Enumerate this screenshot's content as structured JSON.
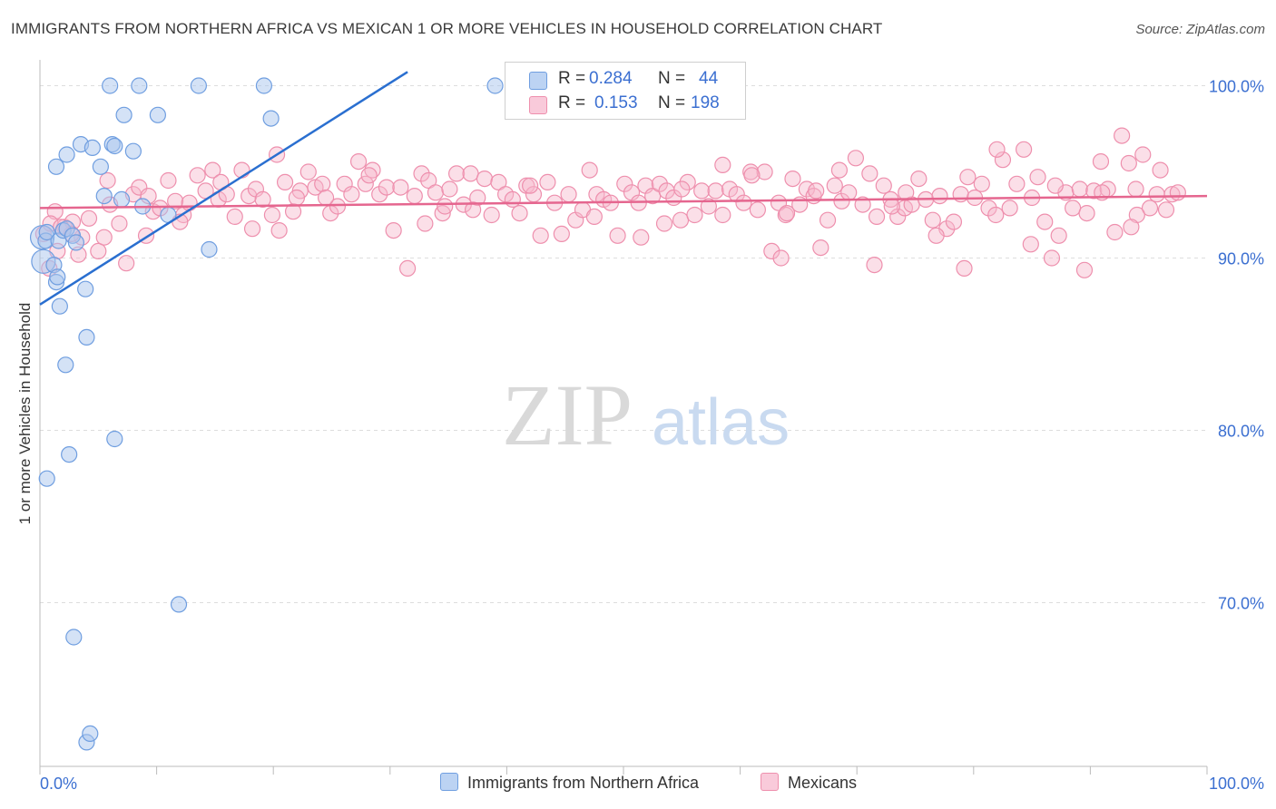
{
  "title": "IMMIGRANTS FROM NORTHERN AFRICA VS MEXICAN 1 OR MORE VEHICLES IN HOUSEHOLD CORRELATION CHART",
  "source": "Source: ZipAtlas.com",
  "watermark": {
    "zip": "ZIP",
    "atlas": "atlas"
  },
  "legend": {
    "r_label": "R =",
    "n_label": "N =",
    "rows": [
      {
        "r": "0.284",
        "n": "44",
        "color": "#a9c6ee"
      },
      {
        "r": "0.153",
        "n": "198",
        "color": "#f6b8cc"
      }
    ]
  },
  "bottom_legend": [
    {
      "label": "Immigrants from Northern Africa",
      "color": "#a9c6ee"
    },
    {
      "label": "Mexicans",
      "color": "#f6b8cc"
    }
  ],
  "colors": {
    "blue_fill": "#a9c6ee",
    "blue_stroke": "#6f9ee0",
    "blue_line": "#2a6fd0",
    "pink_fill": "#f6b8cc",
    "pink_stroke": "#ee8fad",
    "pink_line": "#e5668f",
    "tick_label": "#3b6fd1"
  },
  "chart_data": {
    "type": "scatter",
    "title": "IMMIGRANTS FROM NORTHERN AFRICA VS MEXICAN 1 OR MORE VEHICLES IN HOUSEHOLD CORRELATION CHART",
    "xlabel": "",
    "ylabel": "1 or more Vehicles in Household",
    "xlim": [
      0,
      100
    ],
    "ylim": [
      60.5,
      101.5
    ],
    "x_tick_labels": [
      "0.0%",
      "100.0%"
    ],
    "y_ticks": [
      70,
      80,
      90,
      100
    ],
    "y_tick_labels": [
      "70.0%",
      "80.0%",
      "90.0%",
      "100.0%"
    ],
    "grid": "horizontal dashed",
    "legend_placement": "top-center",
    "series": [
      {
        "name": "Immigrants from Northern Africa",
        "r": 0.284,
        "n": 44,
        "trend": {
          "x": [
            0,
            31.5
          ],
          "y": [
            87.3,
            100.8
          ]
        },
        "points": [
          [
            0.2,
            91.2
          ],
          [
            0.3,
            89.8
          ],
          [
            0.5,
            91.0
          ],
          [
            0.6,
            91.5
          ],
          [
            1.2,
            89.6
          ],
          [
            1.4,
            88.6
          ],
          [
            1.5,
            88.9
          ],
          [
            1.6,
            91.0
          ],
          [
            1.7,
            87.2
          ],
          [
            2.0,
            91.6
          ],
          [
            2.2,
            83.8
          ],
          [
            2.3,
            91.7
          ],
          [
            2.5,
            78.6
          ],
          [
            2.8,
            91.3
          ],
          [
            3.1,
            90.9
          ],
          [
            3.9,
            88.2
          ],
          [
            4.0,
            85.4
          ],
          [
            1.4,
            95.3
          ],
          [
            2.3,
            96.0
          ],
          [
            3.5,
            96.6
          ],
          [
            4.5,
            96.4
          ],
          [
            5.2,
            95.3
          ],
          [
            5.5,
            93.6
          ],
          [
            6.2,
            96.6
          ],
          [
            6.4,
            96.5
          ],
          [
            7.0,
            93.4
          ],
          [
            7.2,
            98.3
          ],
          [
            8.0,
            96.2
          ],
          [
            8.8,
            93.0
          ],
          [
            10.1,
            98.3
          ],
          [
            11.0,
            92.5
          ],
          [
            6.0,
            100.0
          ],
          [
            8.5,
            100.0
          ],
          [
            13.6,
            100.0
          ],
          [
            19.2,
            100.0
          ],
          [
            19.8,
            98.1
          ],
          [
            39.0,
            100.0
          ],
          [
            14.5,
            90.5
          ],
          [
            6.4,
            79.5
          ],
          [
            0.6,
            77.2
          ],
          [
            11.9,
            69.9
          ],
          [
            2.9,
            68.0
          ],
          [
            4.0,
            61.9
          ],
          [
            4.3,
            62.4
          ]
        ]
      },
      {
        "name": "Mexicans",
        "r": 0.153,
        "n": 198,
        "trend": {
          "x": [
            0,
            100
          ],
          "y": [
            92.9,
            93.6
          ]
        },
        "points": [
          [
            0.3,
            91.4
          ],
          [
            0.8,
            89.4
          ],
          [
            1.3,
            92.7
          ],
          [
            1.5,
            90.4
          ],
          [
            2.1,
            91.8
          ],
          [
            2.8,
            92.1
          ],
          [
            3.6,
            91.2
          ],
          [
            4.2,
            92.3
          ],
          [
            5.0,
            90.4
          ],
          [
            5.5,
            91.2
          ],
          [
            6.0,
            93.1
          ],
          [
            6.8,
            92.0
          ],
          [
            7.4,
            89.7
          ],
          [
            8.0,
            93.7
          ],
          [
            8.5,
            94.1
          ],
          [
            9.1,
            91.3
          ],
          [
            9.7,
            92.7
          ],
          [
            10.3,
            92.9
          ],
          [
            11.0,
            94.5
          ],
          [
            11.6,
            93.3
          ],
          [
            12.3,
            92.5
          ],
          [
            12.8,
            93.2
          ],
          [
            13.5,
            94.8
          ],
          [
            14.2,
            93.9
          ],
          [
            14.8,
            95.1
          ],
          [
            15.3,
            93.4
          ],
          [
            16.0,
            93.7
          ],
          [
            16.7,
            92.4
          ],
          [
            17.3,
            95.1
          ],
          [
            17.9,
            93.6
          ],
          [
            18.5,
            94.0
          ],
          [
            19.1,
            93.4
          ],
          [
            19.9,
            92.5
          ],
          [
            20.5,
            91.6
          ],
          [
            21.0,
            94.4
          ],
          [
            21.7,
            92.7
          ],
          [
            22.3,
            93.9
          ],
          [
            23.0,
            95.0
          ],
          [
            23.6,
            94.1
          ],
          [
            24.2,
            94.3
          ],
          [
            24.9,
            92.6
          ],
          [
            25.5,
            93.0
          ],
          [
            26.1,
            94.3
          ],
          [
            26.7,
            93.7
          ],
          [
            27.3,
            95.6
          ],
          [
            27.9,
            94.3
          ],
          [
            28.5,
            95.1
          ],
          [
            29.1,
            93.7
          ],
          [
            29.7,
            94.1
          ],
          [
            30.3,
            91.6
          ],
          [
            30.9,
            94.1
          ],
          [
            31.5,
            89.4
          ],
          [
            32.1,
            93.6
          ],
          [
            32.7,
            94.9
          ],
          [
            33.3,
            94.5
          ],
          [
            33.9,
            93.8
          ],
          [
            34.5,
            92.6
          ],
          [
            35.1,
            94.0
          ],
          [
            35.7,
            94.9
          ],
          [
            36.3,
            93.1
          ],
          [
            36.9,
            94.9
          ],
          [
            37.5,
            93.5
          ],
          [
            38.1,
            94.6
          ],
          [
            38.7,
            92.5
          ],
          [
            39.3,
            94.4
          ],
          [
            39.9,
            93.7
          ],
          [
            40.5,
            93.4
          ],
          [
            41.1,
            92.6
          ],
          [
            41.7,
            94.2
          ],
          [
            42.3,
            93.7
          ],
          [
            42.9,
            91.3
          ],
          [
            43.5,
            94.4
          ],
          [
            44.1,
            93.2
          ],
          [
            44.7,
            91.4
          ],
          [
            45.3,
            93.7
          ],
          [
            45.9,
            92.2
          ],
          [
            46.5,
            92.8
          ],
          [
            47.1,
            95.1
          ],
          [
            47.7,
            93.7
          ],
          [
            48.3,
            93.4
          ],
          [
            48.9,
            93.2
          ],
          [
            49.5,
            91.3
          ],
          [
            50.1,
            94.3
          ],
          [
            50.7,
            93.8
          ],
          [
            51.3,
            93.2
          ],
          [
            51.9,
            94.2
          ],
          [
            52.5,
            93.6
          ],
          [
            53.1,
            94.3
          ],
          [
            53.7,
            93.9
          ],
          [
            54.3,
            93.5
          ],
          [
            54.9,
            92.2
          ],
          [
            55.5,
            94.4
          ],
          [
            56.1,
            92.5
          ],
          [
            56.7,
            93.9
          ],
          [
            57.3,
            93.0
          ],
          [
            57.9,
            93.9
          ],
          [
            58.5,
            95.4
          ],
          [
            59.1,
            94.0
          ],
          [
            59.7,
            93.7
          ],
          [
            60.3,
            93.2
          ],
          [
            60.9,
            95.0
          ],
          [
            61.5,
            92.8
          ],
          [
            62.1,
            95.0
          ],
          [
            62.7,
            90.4
          ],
          [
            63.3,
            93.2
          ],
          [
            63.9,
            92.5
          ],
          [
            64.5,
            94.6
          ],
          [
            65.1,
            93.1
          ],
          [
            65.7,
            94.0
          ],
          [
            66.3,
            93.6
          ],
          [
            66.9,
            90.6
          ],
          [
            67.5,
            92.2
          ],
          [
            68.1,
            94.2
          ],
          [
            68.7,
            93.3
          ],
          [
            69.3,
            93.8
          ],
          [
            69.9,
            95.8
          ],
          [
            70.5,
            93.1
          ],
          [
            71.1,
            94.9
          ],
          [
            71.7,
            92.4
          ],
          [
            72.3,
            94.2
          ],
          [
            72.9,
            93.4
          ],
          [
            73.5,
            92.4
          ],
          [
            74.1,
            92.9
          ],
          [
            74.7,
            93.1
          ],
          [
            75.3,
            94.6
          ],
          [
            75.9,
            93.4
          ],
          [
            76.5,
            92.2
          ],
          [
            77.1,
            93.6
          ],
          [
            77.7,
            91.7
          ],
          [
            78.3,
            92.1
          ],
          [
            78.9,
            93.7
          ],
          [
            79.5,
            94.7
          ],
          [
            80.1,
            93.5
          ],
          [
            80.7,
            94.3
          ],
          [
            81.3,
            92.9
          ],
          [
            81.9,
            92.5
          ],
          [
            82.5,
            95.7
          ],
          [
            83.1,
            92.9
          ],
          [
            83.7,
            94.3
          ],
          [
            84.3,
            96.3
          ],
          [
            84.9,
            90.8
          ],
          [
            85.5,
            94.7
          ],
          [
            86.1,
            92.1
          ],
          [
            86.7,
            90.0
          ],
          [
            87.3,
            91.3
          ],
          [
            87.9,
            93.8
          ],
          [
            88.5,
            92.9
          ],
          [
            89.1,
            94.0
          ],
          [
            89.7,
            92.6
          ],
          [
            90.3,
            93.9
          ],
          [
            90.9,
            95.6
          ],
          [
            91.5,
            94.0
          ],
          [
            92.1,
            91.5
          ],
          [
            92.7,
            97.1
          ],
          [
            93.3,
            95.5
          ],
          [
            93.9,
            94.0
          ],
          [
            94.5,
            96.0
          ],
          [
            95.1,
            92.9
          ],
          [
            95.7,
            93.7
          ],
          [
            18.2,
            91.7
          ],
          [
            20.3,
            96.0
          ],
          [
            34.7,
            93.0
          ],
          [
            37.1,
            92.8
          ],
          [
            51.5,
            91.2
          ],
          [
            58.5,
            92.5
          ],
          [
            66.5,
            93.9
          ],
          [
            74.2,
            93.8
          ],
          [
            76.8,
            91.3
          ],
          [
            89.5,
            89.3
          ],
          [
            79.2,
            89.4
          ],
          [
            71.5,
            89.6
          ],
          [
            63.5,
            90.0
          ],
          [
            96.0,
            95.1
          ],
          [
            97.0,
            93.7
          ],
          [
            5.8,
            94.5
          ],
          [
            9.3,
            93.6
          ],
          [
            15.5,
            94.4
          ],
          [
            24.5,
            93.5
          ],
          [
            28.2,
            94.8
          ],
          [
            42.0,
            94.2
          ],
          [
            55.0,
            94.0
          ],
          [
            61.0,
            94.8
          ],
          [
            68.5,
            95.1
          ],
          [
            82.0,
            96.3
          ],
          [
            87.0,
            94.2
          ],
          [
            91.0,
            93.8
          ],
          [
            94.0,
            92.5
          ],
          [
            96.5,
            92.8
          ],
          [
            12.0,
            92.1
          ],
          [
            22.0,
            93.5
          ],
          [
            33.0,
            92.0
          ],
          [
            47.5,
            92.4
          ],
          [
            53.5,
            92.0
          ],
          [
            64.0,
            92.6
          ],
          [
            73.0,
            93.0
          ],
          [
            85.0,
            93.5
          ],
          [
            93.5,
            91.8
          ],
          [
            2.7,
            91.4
          ],
          [
            3.3,
            90.2
          ],
          [
            0.9,
            92.0
          ],
          [
            1.8,
            91.8
          ],
          [
            97.5,
            93.8
          ]
        ]
      }
    ]
  }
}
